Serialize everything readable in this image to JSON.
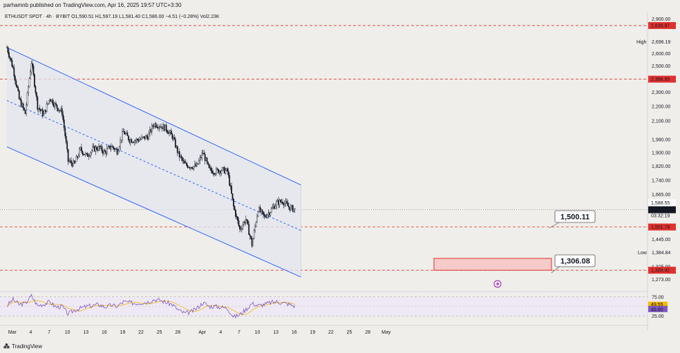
{
  "header": {
    "publisher": "parhamnb published on TradingView.com, Apr 16, 2025 19:57 UTC+3:30",
    "symbol": "ETHUSDT SPOT · 4h · BYBIT",
    "ohlc": "O1,590.51  H1,597.19  L1,581.40  C1,586.00  −4.51 (−0.28%)  Vol2.23K"
  },
  "footer": {
    "brand": "TradingView"
  },
  "colors": {
    "channel": "#2962ff",
    "level_line": "#e0312e",
    "zone_fill": "#f8c2c0",
    "candle": "#131722",
    "rsi": "#7e57c2",
    "rsi_ma": "#f5b800"
  },
  "chart_data": {
    "type": "candlestick",
    "interval": "4h",
    "ylim": [
      1230,
      2960
    ],
    "price_ticks": [
      "2,900.00",
      "2,600.00",
      "2,500.00",
      "2,300.00",
      "2,200.00",
      "2,100.00",
      "1,980.00",
      "1,900.00",
      "1,820.00",
      "1,740.00",
      "1,665.00",
      "1,445.00",
      "1,325.00",
      "1,273.00"
    ],
    "x_ticks": [
      "Mar",
      "4",
      "7",
      "10",
      "13",
      "16",
      "19",
      "22",
      "25",
      "28",
      "Apr",
      "4",
      "7",
      "10",
      "13",
      "16",
      "19",
      "22",
      "25",
      "28",
      "May"
    ],
    "current_price": {
      "value": "1,586.00",
      "countdown": "03:32:19",
      "last_close_label": "1,588.55"
    },
    "levels": [
      {
        "value": "2,839.97",
        "style": "dashed"
      },
      {
        "value": "2,396.95",
        "style": "dashed"
      },
      {
        "value": "1,501.78",
        "style": "dashed"
      },
      {
        "value": "1,309.92",
        "style": "dashed"
      }
    ],
    "high_label": {
      "text": "High",
      "value": "2,696.19"
    },
    "low_label": {
      "text": "Low",
      "value": "1,384.84"
    },
    "callouts": [
      {
        "text": "1,500.11",
        "price": 1500.11
      },
      {
        "text": "1,306.08",
        "price": 1306.08
      }
    ],
    "demand_zone": {
      "from": 1309.92,
      "to": 1360
    },
    "channel": {
      "upper": [
        {
          "date": "Feb 28",
          "price": 2650
        },
        {
          "date": "Apr 17",
          "price": 1715
        }
      ],
      "middle": [
        {
          "date": "Feb 28",
          "price": 2240
        },
        {
          "date": "Apr 17",
          "price": 1485
        }
      ],
      "lower": [
        {
          "date": "Feb 28",
          "price": 1935
        },
        {
          "date": "Apr 17",
          "price": 1282
        }
      ]
    },
    "price_path": [
      [
        "Feb 28",
        2650
      ],
      [
        "Mar 1",
        2480
      ],
      [
        "Mar 2",
        2250
      ],
      [
        "Mar 3",
        2150
      ],
      [
        "Mar 4",
        2530
      ],
      [
        "Mar 5",
        2200
      ],
      [
        "Mar 6",
        2140
      ],
      [
        "Mar 7",
        2260
      ],
      [
        "Mar 8",
        2200
      ],
      [
        "Mar 9",
        2160
      ],
      [
        "Mar 10",
        1850
      ],
      [
        "Mar 11",
        1830
      ],
      [
        "Mar 12",
        1920
      ],
      [
        "Mar 13",
        1880
      ],
      [
        "Mar 14",
        1920
      ],
      [
        "Mar 15",
        1930
      ],
      [
        "Mar 16",
        1900
      ],
      [
        "Mar 17",
        1940
      ],
      [
        "Mar 18",
        1910
      ],
      [
        "Mar 19",
        2030
      ],
      [
        "Mar 20",
        1980
      ],
      [
        "Mar 21",
        1975
      ],
      [
        "Mar 22",
        1985
      ],
      [
        "Mar 23",
        2000
      ],
      [
        "Mar 24",
        2080
      ],
      [
        "Mar 25",
        2070
      ],
      [
        "Mar 26",
        2050
      ],
      [
        "Mar 27",
        2000
      ],
      [
        "Mar 28",
        1890
      ],
      [
        "Mar 29",
        1830
      ],
      [
        "Mar 30",
        1820
      ],
      [
        "Mar 31",
        1820
      ],
      [
        "Apr 1",
        1900
      ],
      [
        "Apr 2",
        1800
      ],
      [
        "Apr 3",
        1790
      ],
      [
        "Apr 4",
        1800
      ],
      [
        "Apr 5",
        1790
      ],
      [
        "Apr 6",
        1600
      ],
      [
        "Apr 7",
        1490
      ],
      [
        "Apr 8",
        1540
      ],
      [
        "Apr 9",
        1420
      ],
      [
        "Apr 10",
        1590
      ],
      [
        "Apr 11",
        1550
      ],
      [
        "Apr 12",
        1580
      ],
      [
        "Apr 13",
        1620
      ],
      [
        "Apr 14",
        1630
      ],
      [
        "Apr 15",
        1600
      ],
      [
        "Apr 16",
        1586
      ]
    ],
    "rsi": {
      "levels": [
        "75.00",
        "25.00"
      ],
      "value": "49.55",
      "ma_value": "45.80",
      "path": [
        [
          0,
          52
        ],
        [
          1,
          68
        ],
        [
          2,
          55
        ],
        [
          3,
          58
        ],
        [
          4,
          78
        ],
        [
          5,
          52
        ],
        [
          6,
          56
        ],
        [
          7,
          62
        ],
        [
          8,
          48
        ],
        [
          9,
          50
        ],
        [
          10,
          30
        ],
        [
          11,
          40
        ],
        [
          12,
          45
        ],
        [
          13,
          50
        ],
        [
          14,
          52
        ],
        [
          15,
          55
        ],
        [
          16,
          48
        ],
        [
          17,
          53
        ],
        [
          18,
          50
        ],
        [
          19,
          62
        ],
        [
          20,
          60
        ],
        [
          21,
          58
        ],
        [
          22,
          60
        ],
        [
          23,
          62
        ],
        [
          24,
          68
        ],
        [
          25,
          66
        ],
        [
          26,
          60
        ],
        [
          27,
          55
        ],
        [
          28,
          40
        ],
        [
          29,
          32
        ],
        [
          30,
          35
        ],
        [
          31,
          45
        ],
        [
          32,
          60
        ],
        [
          33,
          50
        ],
        [
          34,
          50
        ],
        [
          35,
          48
        ],
        [
          36,
          45
        ],
        [
          37,
          22
        ],
        [
          38,
          28
        ],
        [
          39,
          42
        ],
        [
          40,
          58
        ],
        [
          41,
          52
        ],
        [
          42,
          55
        ],
        [
          43,
          60
        ],
        [
          44,
          62
        ],
        [
          45,
          60
        ],
        [
          46,
          56
        ],
        [
          47,
          50
        ]
      ]
    }
  }
}
